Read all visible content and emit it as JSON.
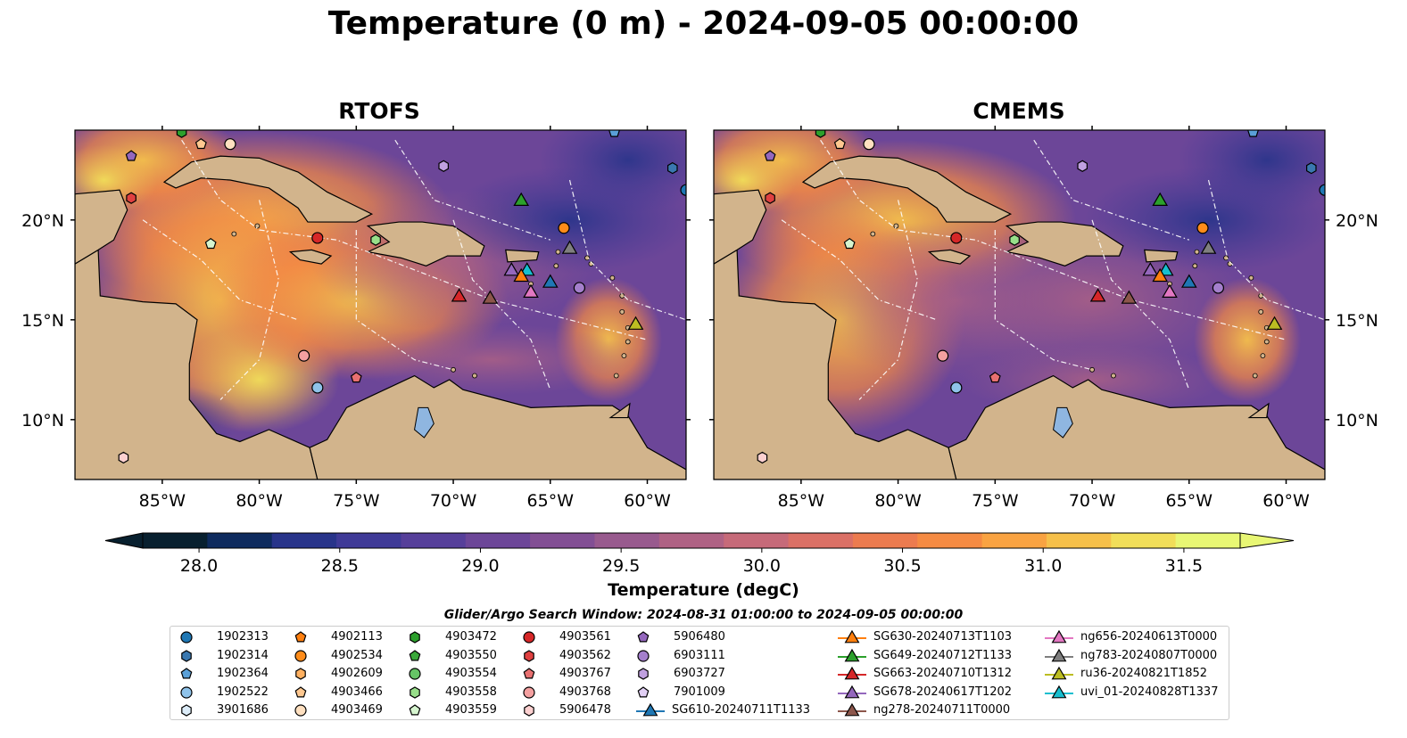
{
  "title": "Temperature (0 m) - 2024-09-05 00:00:00",
  "panels": [
    {
      "title": "RTOFS"
    },
    {
      "title": "CMEMS"
    }
  ],
  "axes": {
    "lon_ticks": [
      "85°W",
      "80°W",
      "75°W",
      "70°W",
      "65°W",
      "60°W"
    ],
    "lat_ticks": [
      "20°N",
      "15°N",
      "10°N"
    ],
    "lon_values": [
      -85,
      -80,
      -75,
      -70,
      -65,
      -60
    ],
    "lat_values": [
      20,
      15,
      10
    ],
    "lon_range": [
      -89.5,
      -58.0
    ],
    "lat_range": [
      7.0,
      24.5
    ]
  },
  "colorbar": {
    "label": "Temperature (degC)",
    "ticks": [
      "28.0",
      "28.5",
      "29.0",
      "29.5",
      "30.0",
      "30.5",
      "31.0",
      "31.5"
    ],
    "tick_values": [
      28.0,
      28.5,
      29.0,
      29.5,
      30.0,
      30.5,
      31.0,
      31.5
    ],
    "range": [
      27.8,
      31.7
    ],
    "colormap": [
      "#08202f",
      "#0e2b5e",
      "#28348a",
      "#3f3a97",
      "#563f9a",
      "#6c4698",
      "#824f94",
      "#985a8e",
      "#af6284",
      "#c66a79",
      "#db7066",
      "#ec7b4f",
      "#f58b43",
      "#f9a342",
      "#f6c04a",
      "#f1de59",
      "#e8f774"
    ]
  },
  "search_window": "Glider/Argo Search Window: 2024-08-31 01:00:00 to 2024-09-05 00:00:00",
  "legend": {
    "argo": [
      {
        "id": "1902313",
        "marker": "circle",
        "color": "#1f77b4"
      },
      {
        "id": "1902314",
        "marker": "hexagon",
        "color": "#3a78b0"
      },
      {
        "id": "1902364",
        "marker": "pentagon",
        "color": "#5aa0d8"
      },
      {
        "id": "1902522",
        "marker": "circle",
        "color": "#8fc3ea"
      },
      {
        "id": "3901686",
        "marker": "hexagon",
        "color": "#dcecf8"
      },
      {
        "id": "4902113",
        "marker": "pentagon",
        "color": "#ff7f0e"
      },
      {
        "id": "4902534",
        "marker": "circle",
        "color": "#ff8c1a"
      },
      {
        "id": "4902609",
        "marker": "hexagon",
        "color": "#ffb060"
      },
      {
        "id": "4903466",
        "marker": "pentagon",
        "color": "#ffc890"
      },
      {
        "id": "4903469",
        "marker": "circle",
        "color": "#ffe0c0"
      },
      {
        "id": "4903472",
        "marker": "hexagon",
        "color": "#2ca02c"
      },
      {
        "id": "4903550",
        "marker": "pentagon",
        "color": "#3aa83a"
      },
      {
        "id": "4903554",
        "marker": "circle",
        "color": "#66c466"
      },
      {
        "id": "4903558",
        "marker": "hexagon",
        "color": "#98df8a"
      },
      {
        "id": "4903559",
        "marker": "pentagon",
        "color": "#d6f5cf"
      },
      {
        "id": "4903561",
        "marker": "circle",
        "color": "#d62728"
      },
      {
        "id": "4903562",
        "marker": "hexagon",
        "color": "#e04040"
      },
      {
        "id": "4903767",
        "marker": "pentagon",
        "color": "#e87070"
      },
      {
        "id": "4903768",
        "marker": "circle",
        "color": "#f4a0a0"
      },
      {
        "id": "5906478",
        "marker": "hexagon",
        "color": "#fcd0d0"
      },
      {
        "id": "5906480",
        "marker": "pentagon",
        "color": "#9467bd"
      },
      {
        "id": "6903111",
        "marker": "circle",
        "color": "#a47fcc"
      },
      {
        "id": "6903727",
        "marker": "hexagon",
        "color": "#c0a0e0"
      },
      {
        "id": "7901009",
        "marker": "pentagon",
        "color": "#e2d0f5"
      }
    ],
    "gliders": [
      {
        "id": "SG610-20240711T1133",
        "color": "#1f77b4"
      },
      {
        "id": "SG630-20240713T1103",
        "color": "#ff7f0e"
      },
      {
        "id": "SG649-20240712T1133",
        "color": "#2ca02c"
      },
      {
        "id": "SG663-20240710T1312",
        "color": "#d62728"
      },
      {
        "id": "SG678-20240617T1202",
        "color": "#9467bd"
      },
      {
        "id": "ng278-20240711T0000",
        "color": "#8c564b"
      },
      {
        "id": "ng656-20240613T0000",
        "color": "#e377c2"
      },
      {
        "id": "ng783-20240807T0000",
        "color": "#7f7f7f"
      },
      {
        "id": "ru36-20240821T1852",
        "color": "#bcbd22"
      },
      {
        "id": "uvi_01-20240828T1337",
        "color": "#17becf"
      }
    ]
  },
  "map_markers": {
    "argo_positions": [
      {
        "id": "4903561",
        "lon": -77.0,
        "lat": 19.1
      },
      {
        "id": "4903558",
        "lon": -74.0,
        "lat": 19.0
      },
      {
        "id": "4903559",
        "lon": -82.5,
        "lat": 18.8
      },
      {
        "id": "4903562",
        "lon": -86.6,
        "lat": 21.1
      },
      {
        "id": "5906480",
        "lon": -86.6,
        "lat": 23.2
      },
      {
        "id": "4903466",
        "lon": -83.0,
        "lat": 23.8
      },
      {
        "id": "4903469",
        "lon": -81.5,
        "lat": 23.8
      },
      {
        "id": "4903472",
        "lon": -84.0,
        "lat": 24.4
      },
      {
        "id": "6903727",
        "lon": -70.5,
        "lat": 22.7
      },
      {
        "id": "4902534",
        "lon": -64.3,
        "lat": 19.6
      },
      {
        "id": "6903111",
        "lon": -63.5,
        "lat": 16.6
      },
      {
        "id": "4903768",
        "lon": -77.7,
        "lat": 13.2
      },
      {
        "id": "1902522",
        "lon": -77.0,
        "lat": 11.6
      },
      {
        "id": "4903767",
        "lon": -75.0,
        "lat": 12.1
      },
      {
        "id": "5906478",
        "lon": -87.0,
        "lat": 8.1
      },
      {
        "id": "1902314",
        "lon": -58.7,
        "lat": 22.6
      },
      {
        "id": "1902313",
        "lon": -58.0,
        "lat": 21.5
      },
      {
        "id": "1902364",
        "lon": -61.7,
        "lat": 24.4
      }
    ],
    "glider_positions": [
      {
        "id": "SG649-20240712T1133",
        "lon": -66.5,
        "lat": 21.0
      },
      {
        "id": "ng783-20240807T0000",
        "lon": -64.0,
        "lat": 18.6
      },
      {
        "id": "SG678-20240617T1202",
        "lon": -67.0,
        "lat": 17.5
      },
      {
        "id": "uvi_01-20240828T1337",
        "lon": -66.2,
        "lat": 17.5
      },
      {
        "id": "SG630-20240713T1103",
        "lon": -66.5,
        "lat": 17.2
      },
      {
        "id": "SG610-20240711T1133",
        "lon": -65.0,
        "lat": 16.9
      },
      {
        "id": "ng656-20240613T0000",
        "lon": -66.0,
        "lat": 16.4
      },
      {
        "id": "SG663-20240710T1312",
        "lon": -69.7,
        "lat": 16.2
      },
      {
        "id": "ng278-20240711T0000",
        "lon": -68.1,
        "lat": 16.1
      },
      {
        "id": "ru36-20240821T1852",
        "lon": -60.6,
        "lat": 14.8
      }
    ]
  }
}
